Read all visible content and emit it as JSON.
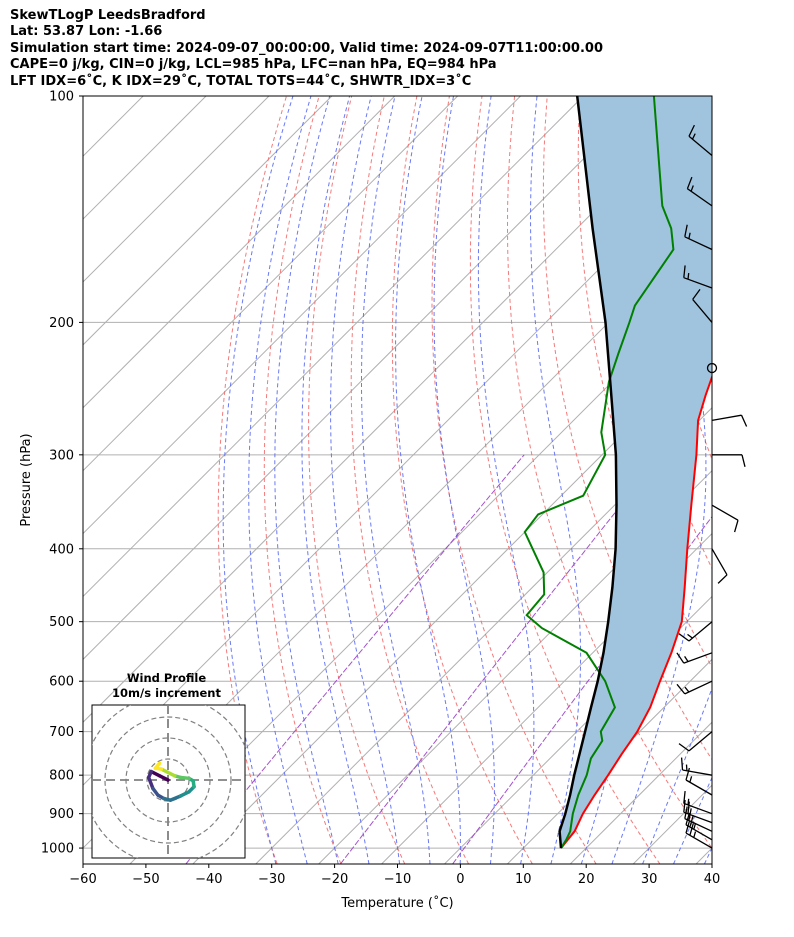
{
  "header": {
    "line1": "SkewTLogP LeedsBradford",
    "line2": "Lat: 53.87   Lon: -1.66",
    "line3": "Simulation start time: 2024-09-07_00:00:00, Valid time: 2024-09-07T11:00:00.00",
    "line4": "CAPE=0 j/kg, CIN=0 j/kg, LCL=985 hPa, LFC=nan hPa, EQ=984 hPa",
    "line5": "LFT IDX=6˚C, K IDX=29˚C, TOTAL TOTS=44˚C, SHWTR_IDX=3˚C"
  },
  "chart_data": {
    "type": "line",
    "subtype": "skew-t log-p",
    "xlabel": "Temperature (˚C)",
    "ylabel": "Pressure (hPa)",
    "xlim": [
      -60,
      40
    ],
    "ylim": [
      1050,
      100
    ],
    "y_scale": "log",
    "x_ticks": [
      "−60",
      "−50",
      "−40",
      "−30",
      "−20",
      "−10",
      "0",
      "10",
      "20",
      "30",
      "40"
    ],
    "y_ticks": [
      "100",
      "200",
      "300",
      "400",
      "500",
      "600",
      "700",
      "800",
      "900",
      "1000"
    ],
    "grid": true,
    "colors": {
      "temperature": "#ff0000",
      "dewpoint": "#008000",
      "parcel": "#000000",
      "cape_fill": "#a0c4de",
      "dry_adiabats": "#f26d6d",
      "moist_adiabats": "#5a6cf2",
      "mixing_ratio": "#9b3fc8"
    },
    "series": [
      {
        "id": "temperature",
        "points": [
          {
            "p": 1000,
            "x": 16
          },
          {
            "p": 950,
            "x": 15.5
          },
          {
            "p": 900,
            "x": 14
          },
          {
            "p": 850,
            "x": 12.9
          },
          {
            "p": 800,
            "x": 11.9
          },
          {
            "p": 750,
            "x": 10.7
          },
          {
            "p": 700,
            "x": 9.6
          },
          {
            "p": 650,
            "x": 7.8
          },
          {
            "p": 600,
            "x": 5.2
          },
          {
            "p": 550,
            "x": 2.5
          },
          {
            "p": 500,
            "x": -0.8
          },
          {
            "p": 450,
            "x": -5.8
          },
          {
            "p": 400,
            "x": -11.5
          },
          {
            "p": 350,
            "x": -17.8
          },
          {
            "p": 300,
            "x": -25
          },
          {
            "p": 270,
            "x": -30.2
          },
          {
            "p": 250,
            "x": -33
          },
          {
            "p": 230,
            "x": -35.8
          },
          {
            "p": 210,
            "x": -38.8
          },
          {
            "p": 200,
            "x": -40.6
          },
          {
            "p": 180,
            "x": -42.8
          },
          {
            "p": 170,
            "x": -45
          },
          {
            "p": 160,
            "x": -47.6
          },
          {
            "p": 150,
            "x": -49.2
          },
          {
            "p": 140,
            "x": -51.8
          },
          {
            "p": 130,
            "x": -54.5
          },
          {
            "p": 120,
            "x": -57.5
          },
          {
            "p": 110,
            "x": -60.3
          },
          {
            "p": 100,
            "x": -63.4
          }
        ]
      },
      {
        "id": "dewpoint",
        "points": [
          {
            "p": 1000,
            "x": 16
          },
          {
            "p": 975,
            "x": 15.5
          },
          {
            "p": 950,
            "x": 14.8
          },
          {
            "p": 900,
            "x": 12.4
          },
          {
            "p": 850,
            "x": 10.3
          },
          {
            "p": 800,
            "x": 8.5
          },
          {
            "p": 760,
            "x": 6.5
          },
          {
            "p": 720,
            "x": 5.5
          },
          {
            "p": 700,
            "x": 3.8
          },
          {
            "p": 650,
            "x": 2.2
          },
          {
            "p": 600,
            "x": -3.5
          },
          {
            "p": 550,
            "x": -11
          },
          {
            "p": 510,
            "x": -22
          },
          {
            "p": 490,
            "x": -26.5
          },
          {
            "p": 460,
            "x": -27
          },
          {
            "p": 430,
            "x": -30.6
          },
          {
            "p": 380,
            "x": -40
          },
          {
            "p": 360,
            "x": -40.7
          },
          {
            "p": 340,
            "x": -36.5
          },
          {
            "p": 300,
            "x": -39.5
          },
          {
            "p": 280,
            "x": -43.7
          },
          {
            "p": 240,
            "x": -50.5
          },
          {
            "p": 220,
            "x": -53.5
          },
          {
            "p": 200,
            "x": -56.7
          },
          {
            "p": 190,
            "x": -58.5
          },
          {
            "p": 160,
            "x": -61.3
          },
          {
            "p": 150,
            "x": -65
          },
          {
            "p": 140,
            "x": -70
          },
          {
            "p": 100,
            "x": -88.8
          }
        ]
      },
      {
        "id": "parcel",
        "points": [
          {
            "p": 1000,
            "x": 16
          },
          {
            "p": 950,
            "x": 13.1
          },
          {
            "p": 900,
            "x": 11.2
          },
          {
            "p": 850,
            "x": 9
          },
          {
            "p": 800,
            "x": 6.5
          },
          {
            "p": 750,
            "x": 4
          },
          {
            "p": 700,
            "x": 1.3
          },
          {
            "p": 650,
            "x": -1.6
          },
          {
            "p": 600,
            "x": -4.7
          },
          {
            "p": 550,
            "x": -8.3
          },
          {
            "p": 500,
            "x": -12.5
          },
          {
            "p": 450,
            "x": -17.3
          },
          {
            "p": 400,
            "x": -22.9
          },
          {
            "p": 350,
            "x": -29.7
          },
          {
            "p": 300,
            "x": -37.8
          },
          {
            "p": 250,
            "x": -48
          },
          {
            "p": 200,
            "x": -60.5
          },
          {
            "p": 150,
            "x": -77.5
          },
          {
            "p": 100,
            "x": -101
          }
        ]
      }
    ],
    "wind_barbs": [
      {
        "p": 1000,
        "dir_deg": 300,
        "speed_kt": 25
      },
      {
        "p": 975,
        "dir_deg": 300,
        "speed_kt": 25
      },
      {
        "p": 950,
        "dir_deg": 295,
        "speed_kt": 20
      },
      {
        "p": 925,
        "dir_deg": 290,
        "speed_kt": 20
      },
      {
        "p": 900,
        "dir_deg": 290,
        "speed_kt": 15
      },
      {
        "p": 850,
        "dir_deg": 300,
        "speed_kt": 15
      },
      {
        "p": 800,
        "dir_deg": 280,
        "speed_kt": 15
      },
      {
        "p": 700,
        "dir_deg": 230,
        "speed_kt": 10
      },
      {
        "p": 600,
        "dir_deg": 245,
        "speed_kt": 15
      },
      {
        "p": 550,
        "dir_deg": 250,
        "speed_kt": 15
      },
      {
        "p": 500,
        "dir_deg": 230,
        "speed_kt": 15
      },
      {
        "p": 400,
        "dir_deg": 150,
        "speed_kt": 10
      },
      {
        "p": 350,
        "dir_deg": 120,
        "speed_kt": 10
      },
      {
        "p": 300,
        "dir_deg": 90,
        "speed_kt": 10
      },
      {
        "p": 270,
        "dir_deg": 80,
        "speed_kt": 10
      },
      {
        "p": 230,
        "dir_deg": 0,
        "speed_kt": 0
      },
      {
        "p": 200,
        "dir_deg": 320,
        "speed_kt": 10
      },
      {
        "p": 180,
        "dir_deg": 290,
        "speed_kt": 15
      },
      {
        "p": 160,
        "dir_deg": 295,
        "speed_kt": 15
      },
      {
        "p": 140,
        "dir_deg": 305,
        "speed_kt": 15
      },
      {
        "p": 120,
        "dir_deg": 310,
        "speed_kt": 15
      }
    ],
    "inset": {
      "title": "Wind Profile",
      "subtitle": "10m/s increment",
      "hodograph_uv_ms": [
        {
          "u": 0,
          "v": 0
        },
        {
          "u": -1,
          "v": 0.5
        },
        {
          "u": -2,
          "v": 1
        },
        {
          "u": -2.3,
          "v": 0.3
        },
        {
          "u": -1.8,
          "v": -1
        },
        {
          "u": -1.2,
          "v": -1.8
        },
        {
          "u": -0.5,
          "v": -2.2
        },
        {
          "u": 0.3,
          "v": -2.4
        },
        {
          "u": 1.5,
          "v": -1.9
        },
        {
          "u": 2.5,
          "v": -1.4
        },
        {
          "u": 3.1,
          "v": -0.8
        },
        {
          "u": 3,
          "v": -0.1
        },
        {
          "u": 2.5,
          "v": 0.2
        },
        {
          "u": 1.5,
          "v": 0.3
        },
        {
          "u": 0.8,
          "v": 0.5
        },
        {
          "u": 0,
          "v": 0.9
        },
        {
          "u": -0.8,
          "v": 1.3
        },
        {
          "u": -1.5,
          "v": 1.4
        },
        {
          "u": -1,
          "v": 2
        }
      ]
    }
  }
}
